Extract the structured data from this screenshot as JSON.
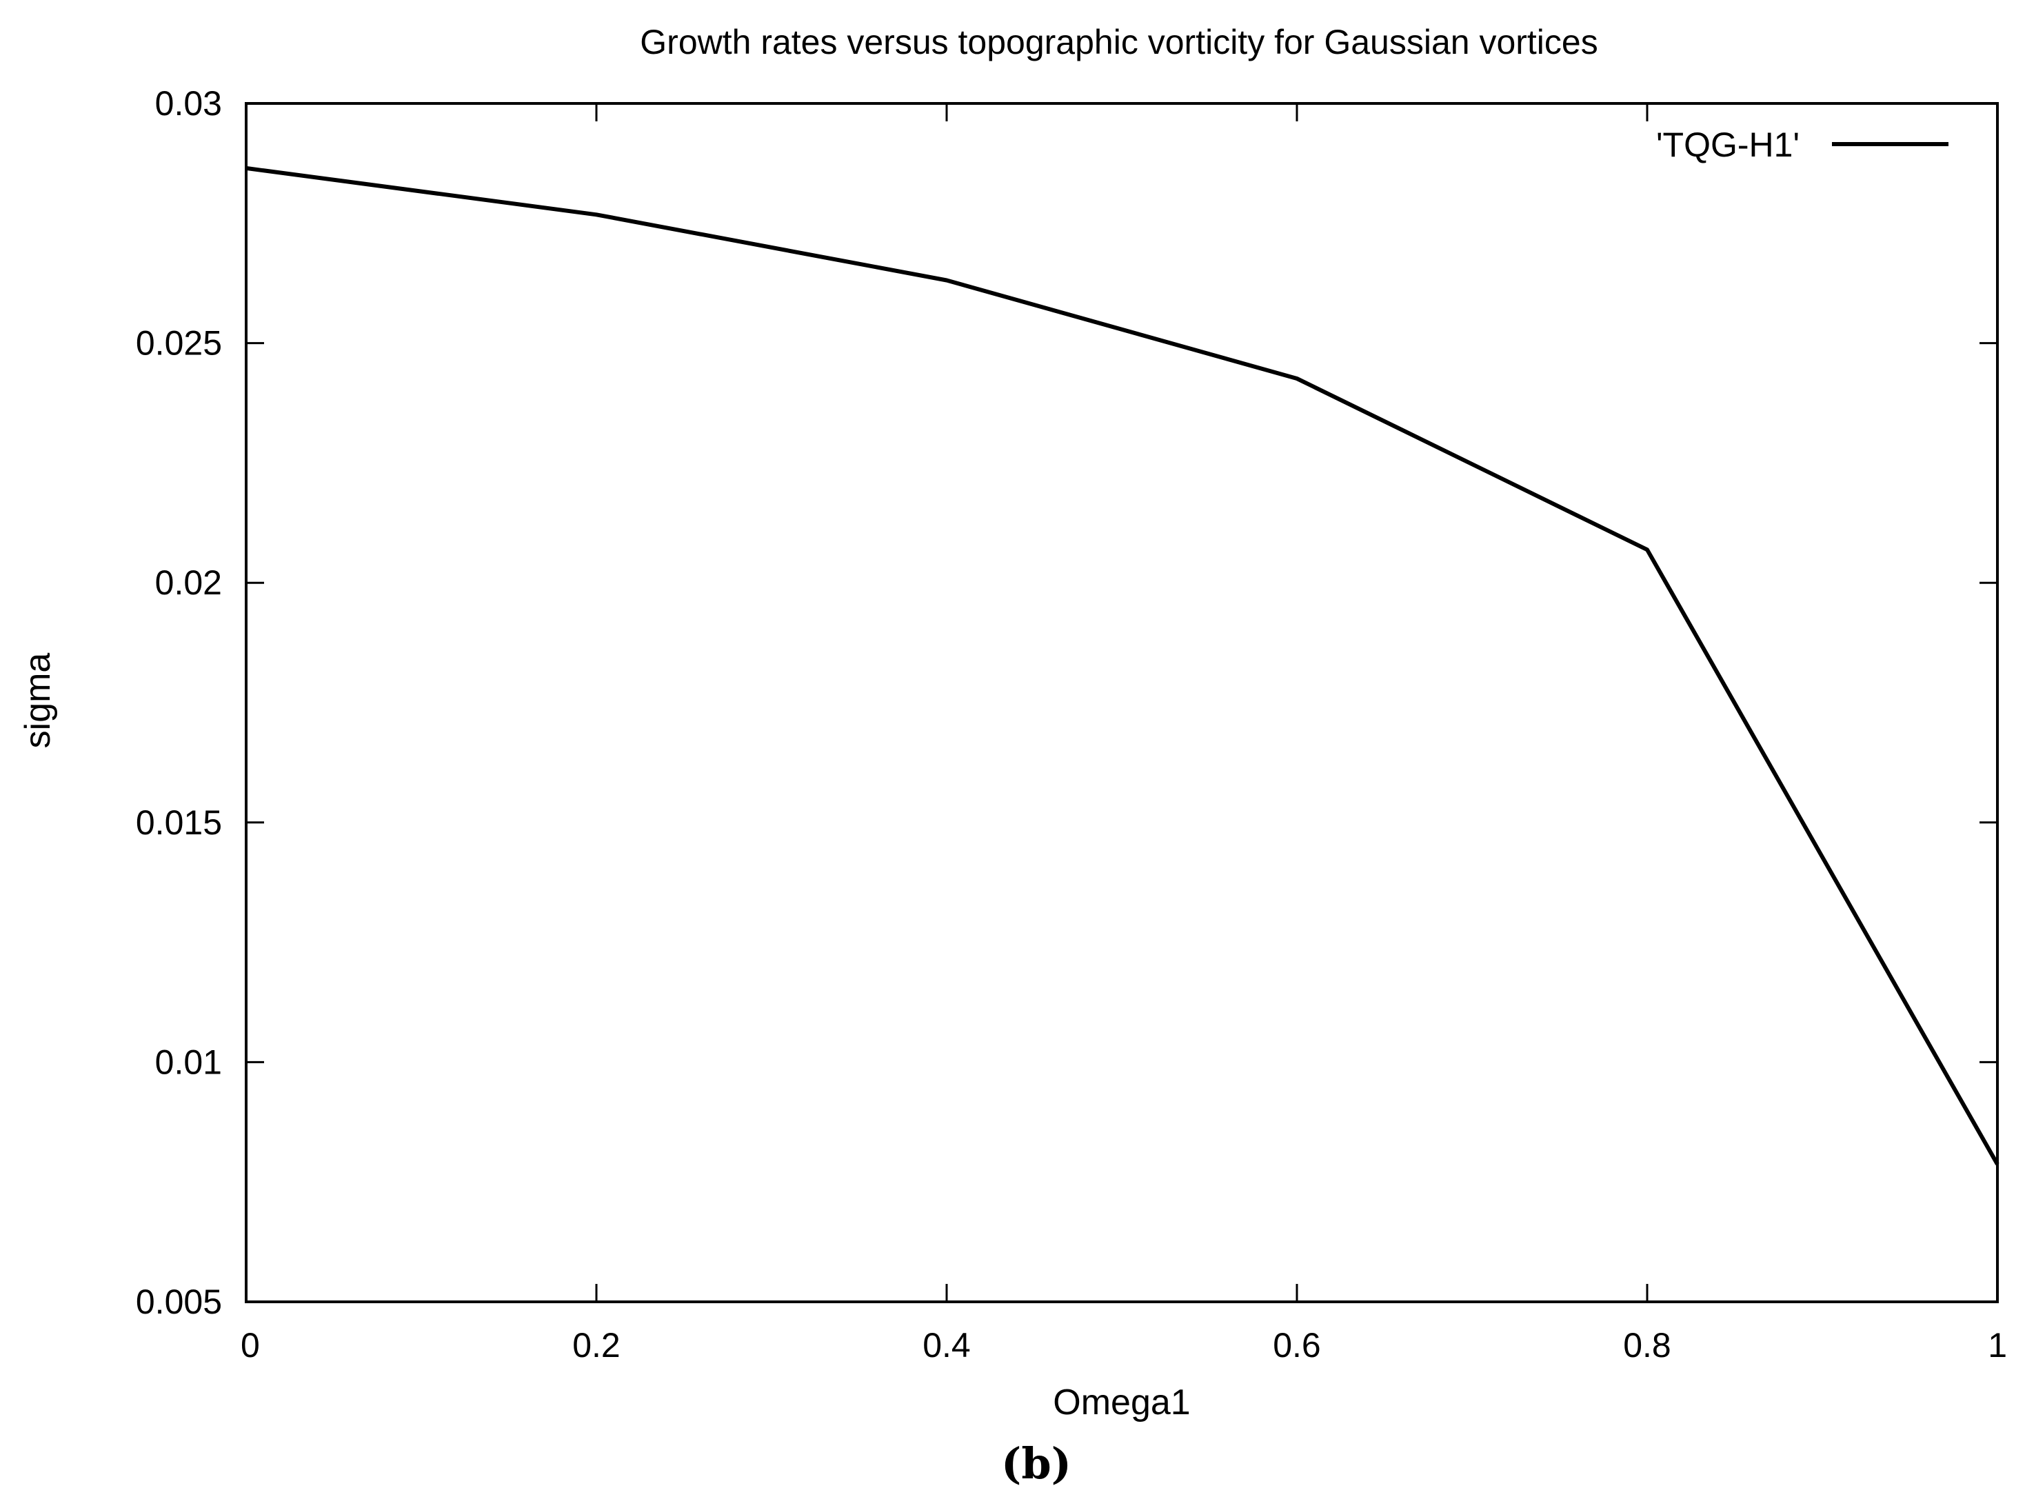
{
  "panel_label": "(b)",
  "colors": {
    "line": "#000000",
    "axis": "#000000",
    "background": "#ffffff"
  },
  "chart_data": {
    "type": "line",
    "title": "Growth rates versus topographic vorticity for Gaussian vortices",
    "xlabel": "Omega1",
    "ylabel": "sigma",
    "xlim": [
      0,
      1
    ],
    "ylim": [
      0.005,
      0.03
    ],
    "xticks": [
      0,
      0.2,
      0.4,
      0.6,
      0.8,
      1
    ],
    "xtick_labels": [
      "0",
      "0.2",
      "0.4",
      "0.6",
      "0.8",
      "1"
    ],
    "yticks": [
      0.005,
      0.01,
      0.015,
      0.02,
      0.025,
      0.03
    ],
    "ytick_labels": [
      "0.005",
      "0.01",
      "0.015",
      "0.02",
      "0.025",
      "0.03"
    ],
    "grid": false,
    "legend_position": "top-right",
    "series": [
      {
        "name": "'TQG-H1'",
        "x": [
          0,
          0.2,
          0.4,
          0.6,
          0.8,
          1.0
        ],
        "y": [
          0.02865,
          0.02768,
          0.02631,
          0.02426,
          0.02069,
          0.00787
        ]
      }
    ]
  }
}
